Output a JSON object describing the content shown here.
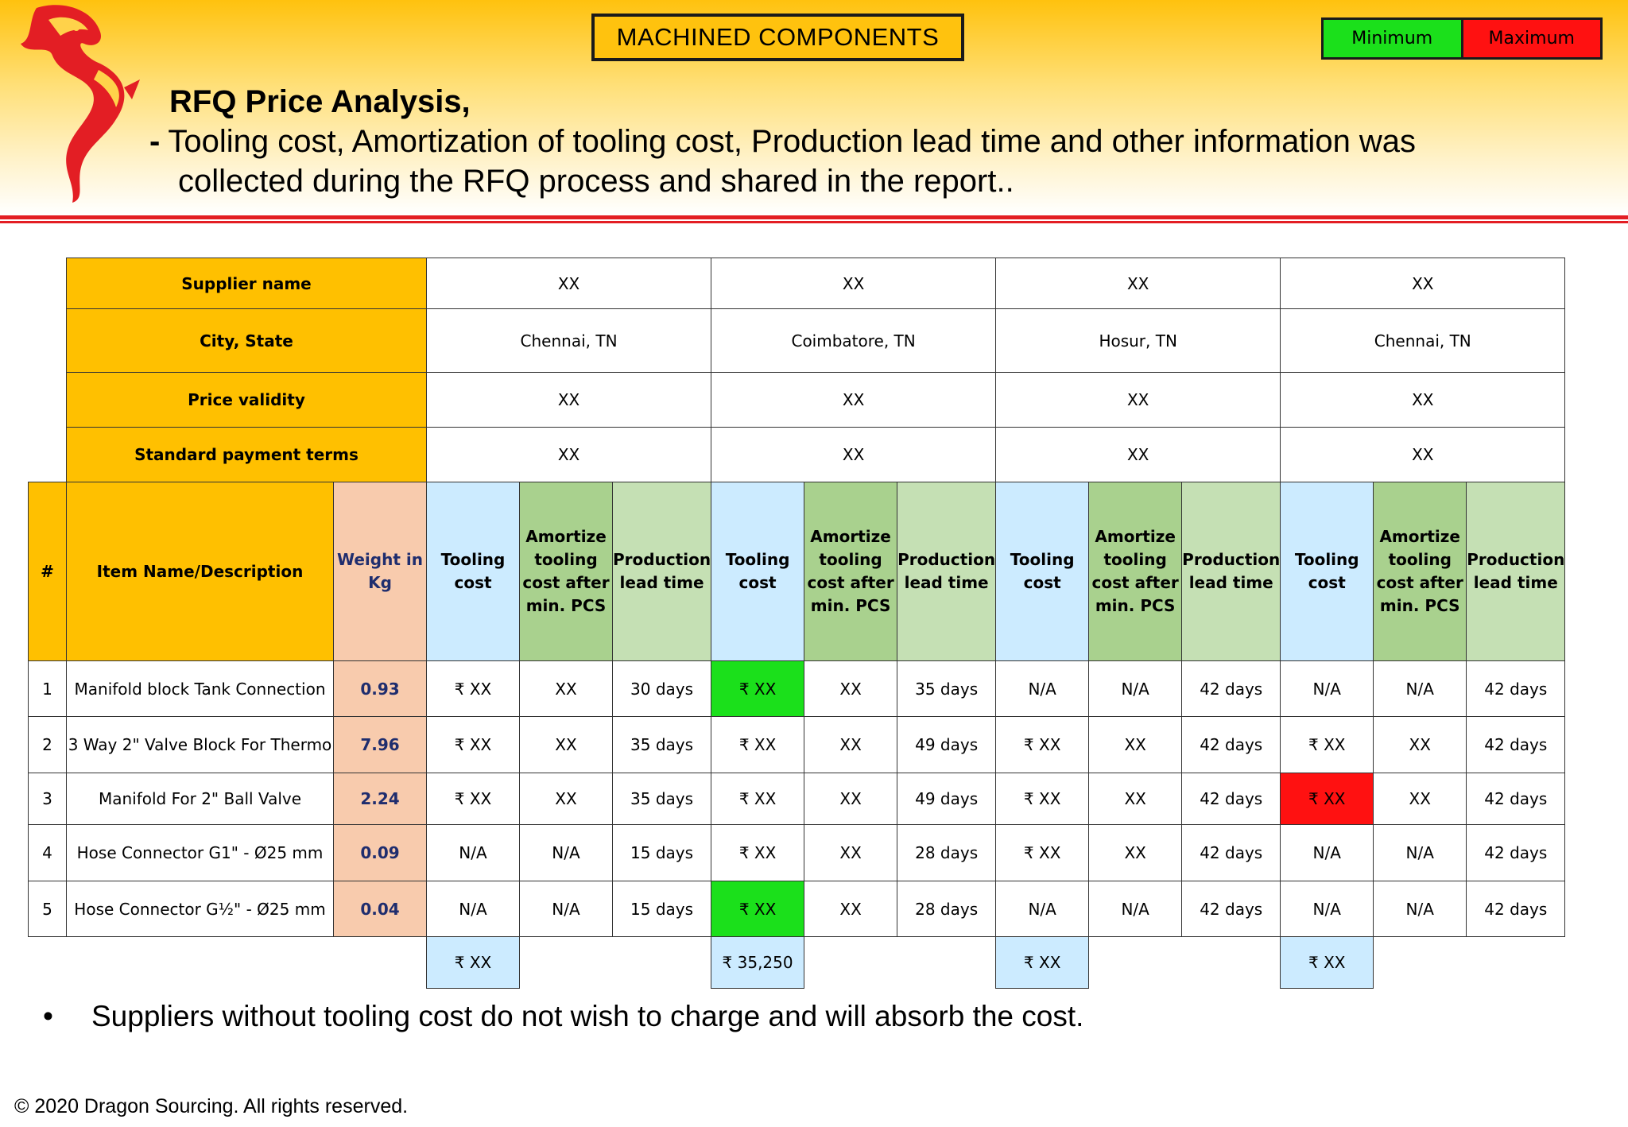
{
  "header": {
    "section_title": "MACHINED COMPONENTS",
    "legend": {
      "min_label": "Minimum",
      "max_label": "Maximum",
      "min_color": "#1be01b",
      "max_color": "#ff1111"
    },
    "heading": "RFQ Price Analysis,",
    "dash": "-",
    "desc_line1": "Tooling cost, Amortization of tooling cost, Production lead time and other information was",
    "desc_line2": "collected during the RFQ process and shared in the report..",
    "logo_icon": "dragon-logo-icon"
  },
  "table": {
    "info_labels": {
      "supplier": "Supplier name",
      "city": "City, State",
      "validity": "Price validity",
      "payment": "Standard payment terms"
    },
    "suppliers": [
      {
        "name": "XX",
        "city": "Chennai, TN",
        "validity": "XX",
        "payment": "XX"
      },
      {
        "name": "XX",
        "city": "Coimbatore, TN",
        "validity": "XX",
        "payment": "XX"
      },
      {
        "name": "XX",
        "city": "Hosur, TN",
        "validity": "XX",
        "payment": "XX"
      },
      {
        "name": "XX",
        "city": "Chennai, TN",
        "validity": "XX",
        "payment": "XX"
      }
    ],
    "col_headers": {
      "num": "#",
      "item": "Item Name/Description",
      "weight": "Weight in Kg",
      "tooling": "Tooling cost",
      "amortize": "Amortize tooling cost after min. PCS",
      "lead": "Production lead time"
    },
    "rows": [
      {
        "num": "1",
        "item": "Manifold block Tank Connection",
        "weight": "0.93",
        "s": [
          [
            "₹ XX",
            "XX",
            "30 days"
          ],
          [
            "₹ XX",
            "XX",
            "35 days"
          ],
          [
            "N/A",
            "N/A",
            "42 days"
          ],
          [
            "N/A",
            "N/A",
            "42 days"
          ]
        ]
      },
      {
        "num": "2",
        "item": "3 Way 2\" Valve Block For Thermo",
        "weight": "7.96",
        "s": [
          [
            "₹ XX",
            "XX",
            "35 days"
          ],
          [
            "₹ XX",
            "XX",
            "49 days"
          ],
          [
            "₹ XX",
            "XX",
            "42 days"
          ],
          [
            "₹ XX",
            "XX",
            "42 days"
          ]
        ]
      },
      {
        "num": "3",
        "item": "Manifold For 2\" Ball Valve",
        "weight": "2.24",
        "s": [
          [
            "₹ XX",
            "XX",
            "35 days"
          ],
          [
            "₹ XX",
            "XX",
            "49 days"
          ],
          [
            "₹ XX",
            "XX",
            "42 days"
          ],
          [
            "₹ XX",
            "XX",
            "42 days"
          ]
        ]
      },
      {
        "num": "4",
        "item": "Hose Connector G1\" - Ø25 mm",
        "weight": "0.09",
        "s": [
          [
            "N/A",
            "N/A",
            "15 days"
          ],
          [
            "₹ XX",
            "XX",
            "28 days"
          ],
          [
            "₹ XX",
            "XX",
            "42 days"
          ],
          [
            "N/A",
            "N/A",
            "42 days"
          ]
        ]
      },
      {
        "num": "5",
        "item": "Hose Connector G½\" - Ø25 mm",
        "weight": "0.04",
        "s": [
          [
            "N/A",
            "N/A",
            "15 days"
          ],
          [
            "₹ XX",
            "XX",
            "28 days"
          ],
          [
            "N/A",
            "N/A",
            "42 days"
          ],
          [
            "N/A",
            "N/A",
            "42 days"
          ]
        ]
      }
    ],
    "totals": [
      "₹ XX",
      "₹ 35,250",
      "₹ XX",
      "₹ XX"
    ]
  },
  "footer": {
    "bullet": "•",
    "note": "Suppliers without tooling cost do not wish to charge and will absorb the cost.",
    "copyright": "© 2020 Dragon Sourcing. All rights reserved."
  }
}
